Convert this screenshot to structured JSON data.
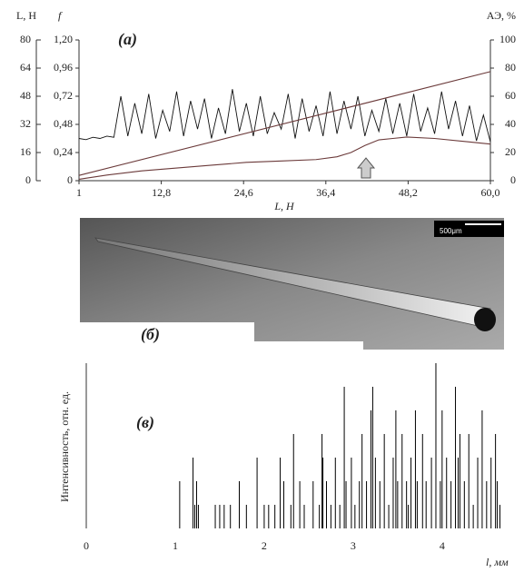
{
  "chart_data": [
    {
      "type": "line",
      "title": "(a)",
      "xlabel": "L, Н",
      "ylabel": "L, Н",
      "y3label": "f",
      "y2label": "АЭ, %",
      "xlim": [
        1,
        60
      ],
      "xticks": [
        1,
        {
          "value": 12.8,
          "label": "12,8"
        },
        {
          "value": 24.6,
          "label": "24,6"
        },
        {
          "value": 36.4,
          "label": "36,4"
        },
        {
          "value": 48.2,
          "label": "48,2"
        },
        {
          "value": 60,
          "label": "60,0"
        }
      ],
      "ylim": [
        0,
        80
      ],
      "yticks": [
        0,
        16,
        32,
        48,
        64,
        80
      ],
      "y3lim": [
        0,
        1.2
      ],
      "y3ticks": [
        0,
        {
          "value": 0.24,
          "label": "0,24"
        },
        {
          "value": 0.48,
          "label": "0,48"
        },
        {
          "value": 0.72,
          "label": "0,72"
        },
        {
          "value": 0.96,
          "label": "0,96"
        },
        {
          "value": 1.2,
          "label": "1,20"
        }
      ],
      "y2lim": [
        0,
        100
      ],
      "y2ticks": [
        0,
        20,
        40,
        60,
        80,
        100
      ],
      "series": [
        {
          "color": "#111111",
          "axis": "y3",
          "x": [
            1,
            2,
            3,
            4,
            5,
            6,
            7,
            8,
            9,
            10,
            11,
            12,
            13,
            14,
            15,
            16,
            17,
            18,
            19,
            20,
            21,
            22,
            23,
            24,
            25,
            26,
            27,
            28,
            29,
            30,
            31,
            32,
            33,
            34,
            35,
            36,
            37,
            38,
            39,
            40,
            41,
            42,
            43,
            44,
            45,
            46,
            47,
            48,
            49,
            50,
            51,
            52,
            53,
            54,
            55,
            56,
            57,
            58,
            59,
            60
          ],
          "values": [
            0.36,
            0.35,
            0.37,
            0.36,
            0.38,
            0.37,
            0.72,
            0.38,
            0.66,
            0.4,
            0.74,
            0.36,
            0.6,
            0.42,
            0.76,
            0.38,
            0.68,
            0.44,
            0.7,
            0.36,
            0.62,
            0.4,
            0.78,
            0.42,
            0.66,
            0.38,
            0.72,
            0.4,
            0.58,
            0.44,
            0.74,
            0.36,
            0.7,
            0.42,
            0.64,
            0.38,
            0.76,
            0.4,
            0.68,
            0.44,
            0.72,
            0.38,
            0.6,
            0.42,
            0.7,
            0.4,
            0.66,
            0.38,
            0.74,
            0.42,
            0.62,
            0.4,
            0.76,
            0.44,
            0.68,
            0.38,
            0.64,
            0.34,
            0.56,
            0.33
          ]
        },
        {
          "color": "#6b3a3a",
          "axis": "y",
          "x": [
            1,
            60
          ],
          "values": [
            3,
            62
          ]
        },
        {
          "color": "#6b3a3a",
          "axis": "y2",
          "x": [
            1,
            5,
            10,
            15,
            20,
            25,
            30,
            35,
            38,
            40,
            42,
            44,
            46,
            48,
            52,
            56,
            60
          ],
          "values": [
            1,
            4,
            7,
            9,
            11,
            13,
            14,
            15,
            17,
            20,
            25,
            29,
            30,
            31,
            30,
            28,
            26
          ]
        }
      ]
    },
    {
      "type": "stem",
      "title": "(в)",
      "xlabel": "l, мм",
      "ylabel": "Интенсивность, отн. ед.",
      "xlim": [
        0,
        4.9
      ],
      "xticks": [
        0,
        1,
        2,
        3,
        4
      ],
      "ylim": [
        0,
        7
      ],
      "color": "#000000",
      "x": [
        1.05,
        1.2,
        1.22,
        1.24,
        1.26,
        1.45,
        1.5,
        1.55,
        1.62,
        1.72,
        1.8,
        1.92,
        2.0,
        2.05,
        2.12,
        2.18,
        2.22,
        2.3,
        2.33,
        2.4,
        2.45,
        2.55,
        2.62,
        2.65,
        2.66,
        2.7,
        2.75,
        2.8,
        2.85,
        2.9,
        2.92,
        2.98,
        3.02,
        3.07,
        3.1,
        3.15,
        3.2,
        3.22,
        3.25,
        3.3,
        3.35,
        3.4,
        3.45,
        3.48,
        3.5,
        3.55,
        3.6,
        3.62,
        3.65,
        3.7,
        3.72,
        3.78,
        3.82,
        3.88,
        3.93,
        3.98,
        4.0,
        4.05,
        4.1,
        4.15,
        4.18,
        4.2,
        4.25,
        4.3,
        4.35,
        4.4,
        4.45,
        4.5,
        4.55,
        4.6,
        4.62,
        4.65
      ],
      "values": [
        2,
        3,
        1,
        2,
        1,
        1,
        1,
        1,
        1,
        2,
        1,
        3,
        1,
        1,
        1,
        3,
        2,
        1,
        4,
        2,
        1,
        2,
        1,
        4,
        3,
        2,
        1,
        3,
        1,
        6,
        2,
        3,
        1,
        2,
        4,
        2,
        5,
        6,
        3,
        2,
        4,
        1,
        3,
        5,
        2,
        4,
        2,
        1,
        3,
        5,
        2,
        4,
        2,
        3,
        7,
        2,
        5,
        3,
        2,
        6,
        3,
        4,
        2,
        4,
        1,
        3,
        5,
        2,
        3,
        4,
        2,
        1
      ]
    }
  ],
  "micrograph": {
    "label": "(б)",
    "scale": "500μm"
  }
}
